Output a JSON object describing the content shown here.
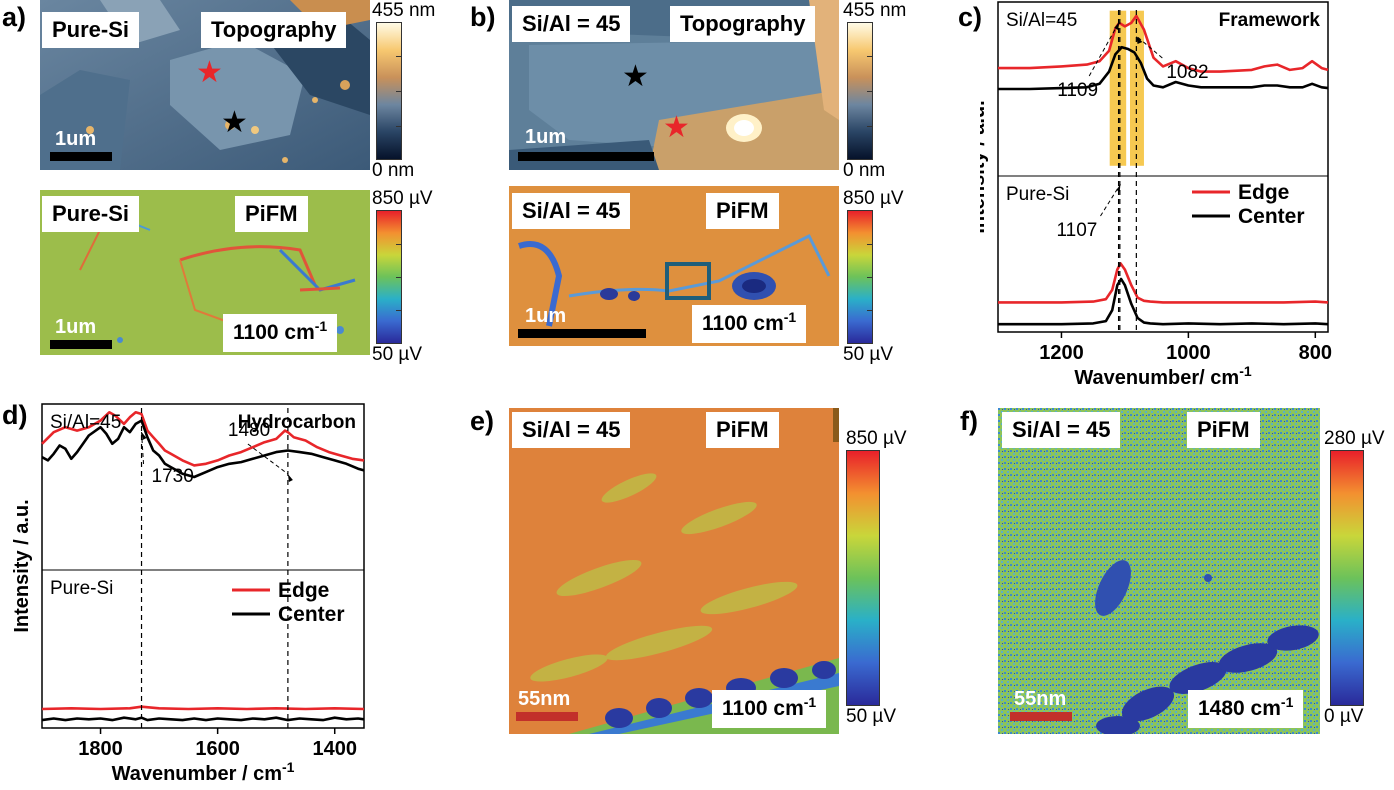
{
  "panel_a": {
    "label": "a)",
    "topo": {
      "sample": "Pure-Si",
      "mode": "Topography",
      "scale": "1um",
      "cb_max": "455 nm",
      "cb_min": "0 nm"
    },
    "pifm": {
      "sample": "Pure-Si",
      "mode": "PiFM",
      "scale": "1um",
      "wavenumber": "1100 cm",
      "wn_sup": "-1",
      "cb_max": "850 µV",
      "cb_min": "50 µV"
    }
  },
  "panel_b": {
    "label": "b)",
    "topo": {
      "sample": "Si/Al = 45",
      "mode": "Topography",
      "scale": "1um",
      "cb_max": "455 nm",
      "cb_min": "0 nm"
    },
    "pifm": {
      "sample": "Si/Al = 45",
      "mode": "PiFM",
      "scale": "1um",
      "wavenumber": "1100 cm",
      "wn_sup": "-1",
      "cb_max": "850 µV",
      "cb_min": "50 µV"
    }
  },
  "panel_e": {
    "label": "e)",
    "sample": "Si/Al = 45",
    "mode": "PiFM",
    "scale": "55nm",
    "wavenumber": "1100 cm",
    "wn_sup": "-1",
    "cb_max": "850 µV",
    "cb_min": "50 µV"
  },
  "panel_f": {
    "label": "f)",
    "sample": "Si/Al = 45",
    "mode": "PiFM",
    "scale": "55nm",
    "wavenumber": "1480 cm",
    "wn_sup": "-1",
    "cb_max": "280 µV",
    "cb_min": "0 µV"
  },
  "colors": {
    "edge": "#e8262a",
    "center": "#000000",
    "highlight": "#f5c033",
    "marker_box": "#1f5e7a"
  },
  "chart_data": [
    {
      "id": "c",
      "type": "line",
      "panel_label": "c)",
      "title": "Framework",
      "xlabel": "Wavenumber/ cm",
      "xlabel_sup": "-1",
      "ylabel": "Intensity / a.u.",
      "xlim": [
        1300,
        780
      ],
      "ylim": [
        0,
        100
      ],
      "xticks": [
        1200,
        1000,
        800
      ],
      "grid": false,
      "legend": {
        "position": "right-middle",
        "entries": [
          "Edge",
          "Center"
        ]
      },
      "subplots": [
        {
          "name": "Si/Al=45",
          "annotations": [
            {
              "text": "1109",
              "x": 1109
            },
            {
              "text": "1082",
              "x": 1082
            }
          ],
          "highlight_bands": [
            [
              1124,
              1098
            ],
            [
              1092,
              1070
            ]
          ],
          "series": [
            {
              "name": "Edge",
              "color": "#e8262a",
              "x": [
                1300,
                1250,
                1200,
                1160,
                1140,
                1125,
                1115,
                1109,
                1100,
                1090,
                1082,
                1070,
                1055,
                1040,
                1020,
                1000,
                980,
                950,
                900,
                880,
                860,
                840,
                820,
                805,
                790,
                780
              ],
              "y": [
                62,
                62,
                63,
                64,
                66,
                72,
                85,
                88,
                86,
                88,
                92,
                84,
                68,
                63,
                66,
                62,
                60,
                60,
                61,
                63,
                64,
                61,
                62,
                66,
                62,
                61
              ]
            },
            {
              "name": "Center",
              "color": "#000000",
              "x": [
                1300,
                1250,
                1200,
                1160,
                1140,
                1125,
                1115,
                1105,
                1095,
                1085,
                1075,
                1065,
                1055,
                1040,
                1020,
                1000,
                980,
                950,
                900,
                880,
                860,
                840,
                820,
                805,
                790,
                780
              ],
              "y": [
                50,
                50,
                50.5,
                51,
                53,
                60,
                70,
                74,
                73,
                71,
                65,
                56,
                52,
                51,
                54,
                52,
                51,
                51,
                51,
                52,
                52,
                51,
                51,
                53,
                51,
                50.5
              ]
            }
          ]
        },
        {
          "name": "Pure-Si",
          "annotations": [
            {
              "text": "1107",
              "x": 1107
            }
          ],
          "series": [
            {
              "name": "Edge",
              "color": "#e8262a",
              "x": [
                1300,
                1200,
                1150,
                1130,
                1120,
                1112,
                1107,
                1100,
                1090,
                1080,
                1070,
                1060,
                1040,
                1000,
                950,
                900,
                850,
                800,
                780
              ],
              "y": [
                19,
                19,
                19.5,
                21,
                27,
                40,
                44,
                40,
                30,
                22,
                20,
                19.5,
                19,
                19,
                19,
                19,
                19,
                19.5,
                19
              ]
            },
            {
              "name": "Center",
              "color": "#000000",
              "x": [
                1300,
                1200,
                1150,
                1130,
                1120,
                1112,
                1106,
                1100,
                1090,
                1080,
                1070,
                1060,
                1040,
                1000,
                950,
                900,
                850,
                800,
                780
              ],
              "y": [
                5,
                5,
                5.5,
                7,
                14,
                30,
                34,
                30,
                18,
                9,
                6,
                5.5,
                5,
                5.5,
                5,
                5.5,
                5,
                5.5,
                5
              ]
            }
          ]
        }
      ]
    },
    {
      "id": "d",
      "type": "line",
      "panel_label": "d)",
      "title": "Hydrocarbon",
      "xlabel": "Wavenumber / cm",
      "xlabel_sup": "-1",
      "ylabel": "Intensity / a.u.",
      "xlim": [
        1900,
        1350
      ],
      "ylim": [
        0,
        100
      ],
      "xticks": [
        1800,
        1600,
        1400
      ],
      "grid": false,
      "legend": {
        "position": "middle-right",
        "entries": [
          "Edge",
          "Center"
        ]
      },
      "subplots": [
        {
          "name": "Si/Al=45",
          "annotations": [
            {
              "text": "1730",
              "x": 1730
            },
            {
              "text": "1480",
              "x": 1480
            }
          ],
          "series": [
            {
              "name": "Edge",
              "color": "#e8262a",
              "x": [
                1900,
                1880,
                1860,
                1840,
                1820,
                1800,
                1785,
                1775,
                1760,
                1750,
                1740,
                1730,
                1720,
                1710,
                1700,
                1690,
                1680,
                1660,
                1640,
                1620,
                1600,
                1580,
                1560,
                1540,
                1520,
                1500,
                1485,
                1480,
                1470,
                1450,
                1430,
                1410,
                1390,
                1370,
                1350
              ],
              "y": [
                76,
                83,
                86,
                84,
                86,
                90,
                95,
                93,
                88,
                92,
                95,
                94,
                84,
                80,
                76,
                72,
                70,
                66,
                63,
                64,
                66,
                69,
                71,
                74,
                77,
                79,
                84,
                83,
                80,
                78,
                74,
                71,
                69,
                67,
                66
              ]
            },
            {
              "name": "Center",
              "color": "#000000",
              "x": [
                1900,
                1890,
                1880,
                1870,
                1860,
                1850,
                1840,
                1830,
                1820,
                1800,
                1790,
                1780,
                1770,
                1760,
                1750,
                1740,
                1730,
                1720,
                1710,
                1700,
                1690,
                1680,
                1670,
                1660,
                1650,
                1640,
                1620,
                1600,
                1580,
                1560,
                1540,
                1520,
                1500,
                1480,
                1460,
                1440,
                1420,
                1400,
                1380,
                1360,
                1350
              ],
              "y": [
                68,
                66,
                70,
                75,
                73,
                67,
                71,
                76,
                81,
                86,
                82,
                76,
                79,
                86,
                83,
                88,
                90,
                80,
                72,
                69,
                64,
                62,
                60,
                58,
                57,
                56,
                59,
                62,
                64,
                65,
                67,
                69,
                71,
                72,
                71,
                70,
                68,
                66,
                64,
                61,
                60
              ]
            }
          ]
        },
        {
          "name": "Pure-Si",
          "series": [
            {
              "name": "Edge",
              "color": "#e8262a",
              "x": [
                1900,
                1850,
                1800,
                1750,
                1730,
                1700,
                1650,
                1600,
                1550,
                1500,
                1450,
                1400,
                1350
              ],
              "y": [
                12,
                12.5,
                12,
                12.5,
                13.5,
                12.5,
                12,
                12.5,
                12,
                12.5,
                12,
                12.5,
                12
              ]
            },
            {
              "name": "Center",
              "color": "#000000",
              "x": [
                1900,
                1880,
                1860,
                1840,
                1820,
                1800,
                1780,
                1760,
                1740,
                1730,
                1720,
                1700,
                1680,
                1660,
                1640,
                1620,
                1600,
                1580,
                1560,
                1540,
                1520,
                1500,
                1480,
                1460,
                1440,
                1420,
                1400,
                1380,
                1360,
                1350
              ],
              "y": [
                5,
                6,
                5,
                6,
                5.5,
                6,
                5,
                6.5,
                5.5,
                6.5,
                5,
                6,
                5.5,
                5,
                6,
                5,
                6,
                5.5,
                5,
                6,
                5.5,
                6.5,
                5,
                6,
                5.5,
                5,
                6.5,
                5.5,
                6,
                5.5
              ]
            }
          ]
        }
      ]
    }
  ]
}
